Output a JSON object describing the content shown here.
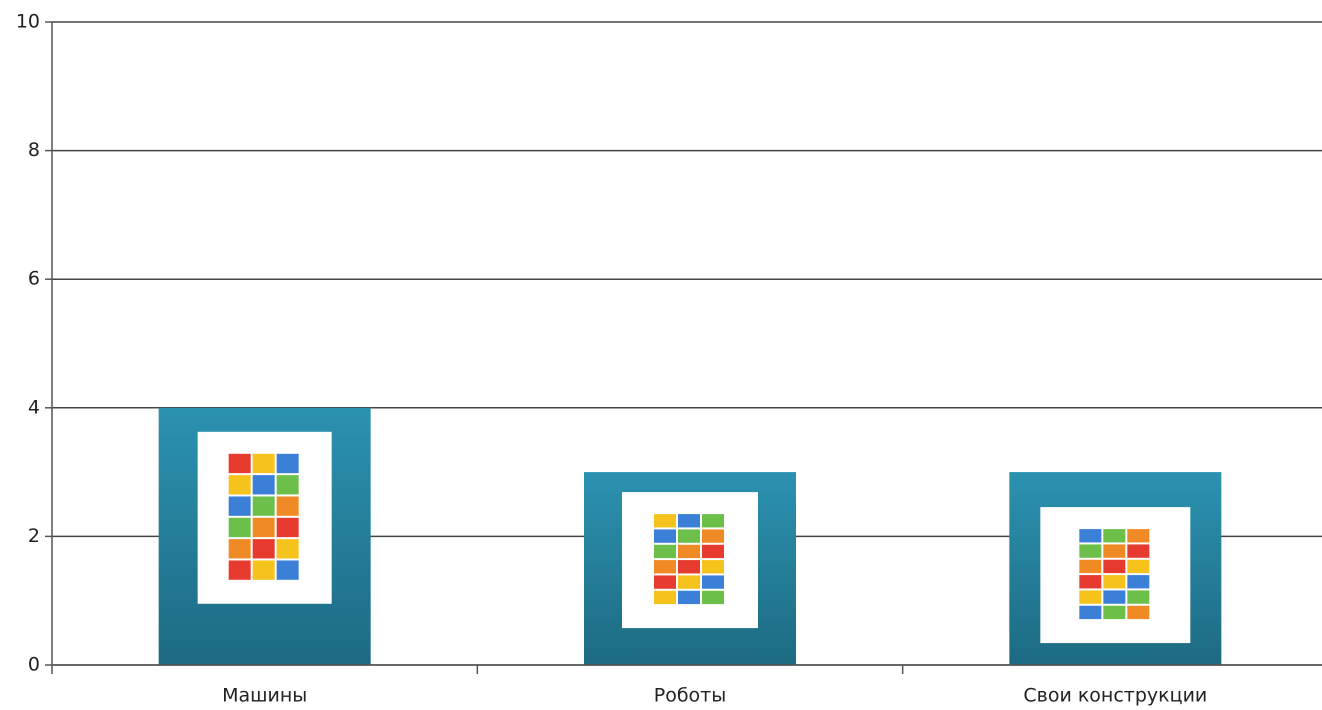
{
  "chart_data": {
    "type": "bar",
    "categories": [
      "Машины",
      "Роботы",
      "Свои конструкции"
    ],
    "values": [
      4,
      3,
      3
    ],
    "color": "#2b92b0",
    "ylim": [
      0,
      10
    ],
    "yticks": [
      0,
      2,
      4,
      6,
      8,
      10
    ],
    "grid": true
  }
}
